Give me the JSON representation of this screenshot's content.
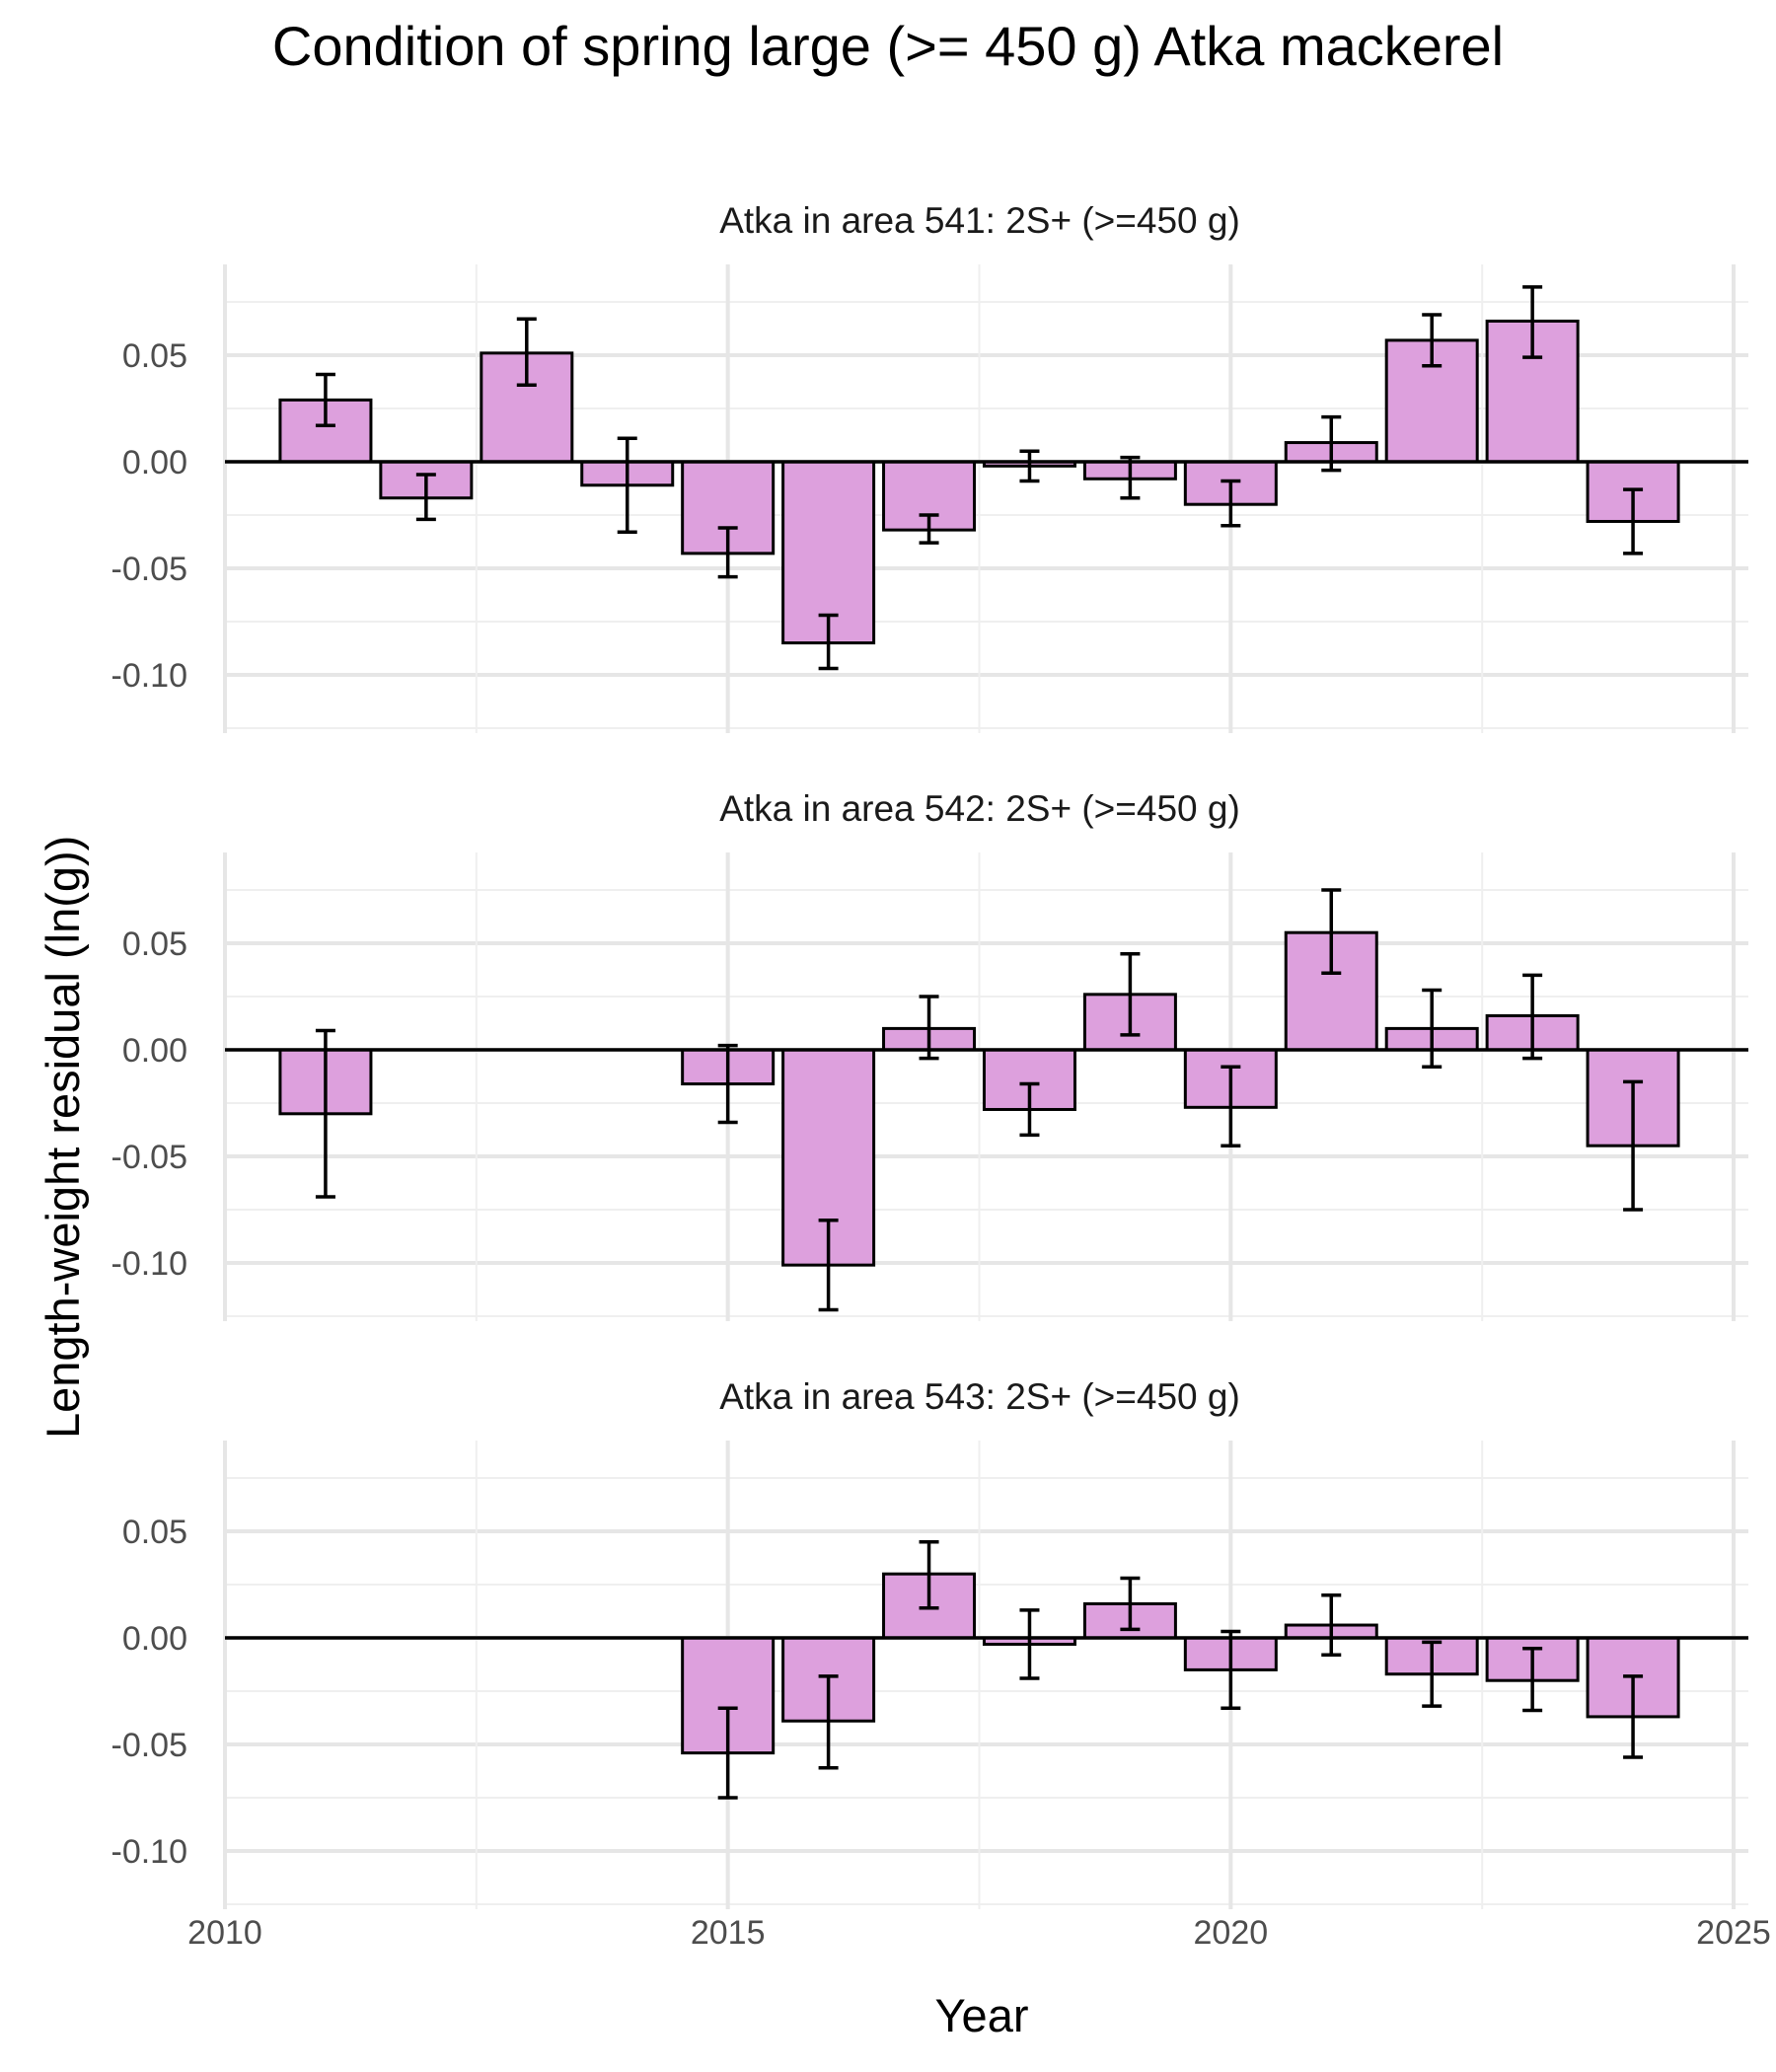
{
  "chart_data": {
    "type": "bar",
    "title": "Condition of spring large (>= 450 g) Atka mackerel",
    "xlabel": "Year",
    "ylabel": "Length-weight residual (ln(g))",
    "xlim": [
      2010,
      2025
    ],
    "ylim": [
      -0.125,
      0.09
    ],
    "x_ticks": [
      2010,
      2015,
      2020,
      2025
    ],
    "y_ticks": [
      0.05,
      0.0,
      -0.05,
      -0.1
    ],
    "y_tick_labels": [
      "0.05",
      "0.00",
      "-0.05",
      "-0.10"
    ],
    "grid": true,
    "bar_fill": "#DDA0DD",
    "bar_stroke": "#000000",
    "panels": [
      {
        "title": "Atka in area 541: 2S+ (>=450 g)",
        "x": [
          2011,
          2012,
          2013,
          2014,
          2015,
          2016,
          2017,
          2018,
          2019,
          2020,
          2021,
          2022,
          2023,
          2024
        ],
        "values": [
          0.029,
          -0.017,
          0.051,
          -0.011,
          -0.043,
          -0.085,
          -0.032,
          -0.002,
          -0.008,
          -0.02,
          0.009,
          0.057,
          0.066,
          -0.028
        ],
        "err_low": [
          0.017,
          -0.027,
          0.036,
          -0.033,
          -0.054,
          -0.097,
          -0.038,
          -0.009,
          -0.017,
          -0.03,
          -0.004,
          0.045,
          0.049,
          -0.043
        ],
        "err_high": [
          0.041,
          -0.006,
          0.067,
          0.011,
          -0.031,
          -0.072,
          -0.025,
          0.005,
          0.002,
          -0.009,
          0.021,
          0.069,
          0.082,
          -0.013
        ]
      },
      {
        "title": "Atka in area 542: 2S+ (>=450 g)",
        "x": [
          2011,
          2015,
          2016,
          2017,
          2018,
          2019,
          2020,
          2021,
          2022,
          2023,
          2024
        ],
        "values": [
          -0.03,
          -0.016,
          -0.101,
          0.01,
          -0.028,
          0.026,
          -0.027,
          0.055,
          0.01,
          0.016,
          -0.045
        ],
        "err_low": [
          -0.069,
          -0.034,
          -0.122,
          -0.004,
          -0.04,
          0.007,
          -0.045,
          0.036,
          -0.008,
          -0.004,
          -0.075
        ],
        "err_high": [
          0.009,
          0.002,
          -0.08,
          0.025,
          -0.016,
          0.045,
          -0.008,
          0.075,
          0.028,
          0.035,
          -0.015
        ]
      },
      {
        "title": "Atka in area 543: 2S+ (>=450 g)",
        "x": [
          2015,
          2016,
          2017,
          2018,
          2019,
          2020,
          2021,
          2022,
          2023,
          2024
        ],
        "values": [
          -0.054,
          -0.039,
          0.03,
          -0.003,
          0.016,
          -0.015,
          0.006,
          -0.017,
          -0.02,
          -0.037
        ],
        "err_low": [
          -0.075,
          -0.061,
          0.014,
          -0.019,
          0.004,
          -0.033,
          -0.008,
          -0.032,
          -0.034,
          -0.056
        ],
        "err_high": [
          -0.033,
          -0.018,
          0.045,
          0.013,
          0.028,
          0.003,
          0.02,
          -0.002,
          -0.005,
          -0.018
        ]
      }
    ]
  }
}
